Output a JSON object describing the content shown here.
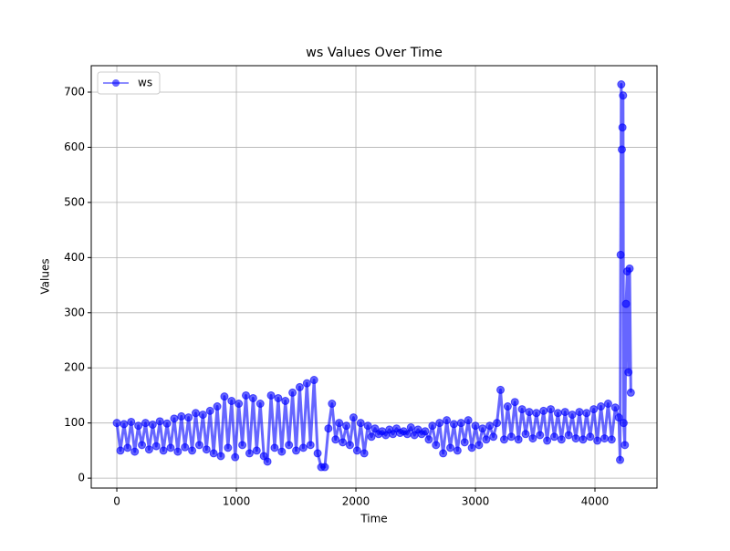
{
  "chart_data": {
    "type": "line",
    "title": "ws Values Over Time",
    "xlabel": "Time",
    "ylabel": "Values",
    "x": [
      0,
      30,
      60,
      90,
      120,
      150,
      180,
      210,
      240,
      270,
      300,
      330,
      360,
      390,
      420,
      450,
      480,
      510,
      540,
      570,
      600,
      630,
      660,
      690,
      720,
      750,
      780,
      810,
      840,
      870,
      900,
      930,
      960,
      990,
      1020,
      1050,
      1080,
      1110,
      1140,
      1170,
      1200,
      1230,
      1260,
      1290,
      1320,
      1350,
      1380,
      1410,
      1440,
      1470,
      1500,
      1530,
      1560,
      1590,
      1620,
      1650,
      1680,
      1710,
      1740,
      1770,
      1800,
      1830,
      1860,
      1890,
      1920,
      1950,
      1980,
      2010,
      2040,
      2070,
      2100,
      2130,
      2160,
      2190,
      2220,
      2250,
      2280,
      2310,
      2340,
      2370,
      2400,
      2430,
      2460,
      2490,
      2520,
      2550,
      2580,
      2610,
      2640,
      2670,
      2700,
      2730,
      2760,
      2790,
      2820,
      2850,
      2880,
      2910,
      2940,
      2970,
      3000,
      3030,
      3060,
      3090,
      3120,
      3150,
      3180,
      3210,
      3240,
      3270,
      3300,
      3330,
      3360,
      3390,
      3420,
      3450,
      3480,
      3510,
      3540,
      3570,
      3600,
      3630,
      3660,
      3690,
      3720,
      3750,
      3780,
      3810,
      3840,
      3870,
      3900,
      3930,
      3960,
      3990,
      4020,
      4050,
      4080,
      4110,
      4140,
      4170,
      4200,
      4210,
      4215,
      4220,
      4225,
      4230,
      4235,
      4240,
      4250,
      4260,
      4270,
      4280,
      4290,
      4300
    ],
    "series": [
      {
        "name": "ws",
        "color": "#0000ff",
        "values": [
          100,
          50,
          98,
          55,
          102,
          48,
          95,
          60,
          100,
          52,
          97,
          58,
          103,
          50,
          99,
          55,
          108,
          48,
          112,
          56,
          110,
          50,
          118,
          60,
          115,
          52,
          122,
          45,
          130,
          40,
          148,
          55,
          140,
          38,
          135,
          60,
          150,
          45,
          145,
          50,
          135,
          40,
          30,
          150,
          55,
          145,
          48,
          140,
          60,
          155,
          50,
          165,
          55,
          172,
          60,
          178,
          45,
          20,
          20,
          90,
          135,
          70,
          100,
          65,
          95,
          60,
          110,
          50,
          100,
          45,
          95,
          75,
          90,
          80,
          85,
          78,
          88,
          80,
          90,
          82,
          85,
          80,
          92,
          78,
          88,
          80,
          85,
          70,
          95,
          60,
          100,
          45,
          105,
          55,
          98,
          50,
          100,
          65,
          105,
          55,
          95,
          60,
          90,
          70,
          95,
          75,
          100,
          160,
          70,
          130,
          75,
          138,
          70,
          125,
          80,
          120,
          72,
          118,
          78,
          122,
          68,
          125,
          75,
          118,
          70,
          120,
          78,
          115,
          72,
          120,
          70,
          118,
          75,
          125,
          68,
          130,
          72,
          135,
          70,
          128,
          110,
          33,
          405,
          714,
          596,
          636,
          694,
          100,
          60,
          316,
          375,
          192,
          380,
          155
        ]
      }
    ],
    "xlim": [
      -214,
      4519
    ],
    "ylim": [
      -18,
      748
    ],
    "xticks": [
      0,
      1000,
      2000,
      3000,
      4000
    ],
    "yticks": [
      0,
      100,
      200,
      300,
      400,
      500,
      600,
      700
    ],
    "grid": true,
    "legend": "upper left"
  }
}
